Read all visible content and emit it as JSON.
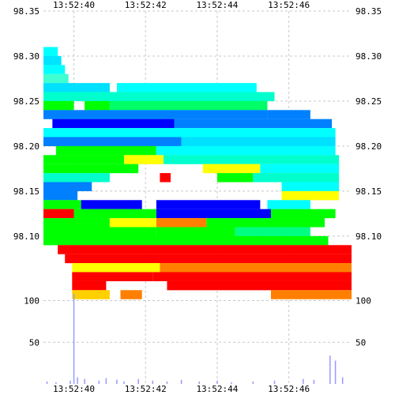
{
  "chart_data": {
    "type": "heatmap",
    "title": "",
    "xlabel": "",
    "ylabel": "",
    "grid": true,
    "x_tick_labels": [
      "13:52:40",
      "13:52:42",
      "13:52:44",
      "13:52:46"
    ],
    "x_ticks_sec": [
      0,
      2,
      4,
      6
    ],
    "xlim_sec": [
      -0.85,
      7.75
    ],
    "price_ticks": [
      98.35,
      98.3,
      98.25,
      98.2,
      98.15,
      98.1
    ],
    "price_tick_labels": [
      "98.35",
      "98.30",
      "98.25",
      "98.20",
      "98.15",
      "98.10"
    ],
    "price_ylim": [
      98.035,
      98.35
    ],
    "volume_ticks": [
      100,
      50
    ],
    "volume_tick_labels": [
      "100",
      "50"
    ],
    "volume_ylim": [
      0,
      110
    ],
    "color_scale": [
      "#00ff00",
      "#00ffff",
      "#0080ff",
      "#0000ff",
      "#ff0000",
      "#ffff00"
    ],
    "bands": [
      {
        "price": 98.305,
        "x0": -0.85,
        "x1": -0.45,
        "color": "#00ffff"
      },
      {
        "price": 98.295,
        "x0": -0.85,
        "x1": -0.35,
        "color": "#00e5ff"
      },
      {
        "price": 98.285,
        "x0": -0.85,
        "x1": -0.25,
        "color": "#00ffff"
      },
      {
        "price": 98.275,
        "x0": -0.85,
        "x1": -0.15,
        "color": "#40ffd0"
      },
      {
        "price": 98.265,
        "x0": -0.85,
        "x1": 1.0,
        "color": "#00e0ff"
      },
      {
        "price": 98.265,
        "x0": 1.2,
        "x1": 5.1,
        "color": "#00ffff"
      },
      {
        "price": 98.255,
        "x0": -0.85,
        "x1": 5.6,
        "color": "#00ffcc"
      },
      {
        "price": 98.245,
        "x0": -0.85,
        "x1": 0.0,
        "color": "#00ff00"
      },
      {
        "price": 98.245,
        "x0": 0.3,
        "x1": 1.0,
        "color": "#00ff00"
      },
      {
        "price": 98.245,
        "x0": 1.0,
        "x1": 5.4,
        "color": "#00ff66"
      },
      {
        "price": 98.235,
        "x0": -0.85,
        "x1": 5.4,
        "color": "#0080ff"
      },
      {
        "price": 98.235,
        "x0": 5.4,
        "x1": 6.6,
        "color": "#0080ff"
      },
      {
        "price": 98.225,
        "x0": -0.6,
        "x1": 2.8,
        "color": "#0000ff"
      },
      {
        "price": 98.225,
        "x0": 2.8,
        "x1": 7.2,
        "color": "#0080ff"
      },
      {
        "price": 98.215,
        "x0": -0.85,
        "x1": 7.3,
        "color": "#00ffff"
      },
      {
        "price": 98.205,
        "x0": -0.85,
        "x1": 3.0,
        "color": "#0080ff"
      },
      {
        "price": 98.205,
        "x0": 3.0,
        "x1": 7.3,
        "color": "#00e0ff"
      },
      {
        "price": 98.195,
        "x0": -0.5,
        "x1": 2.3,
        "color": "#00ff00"
      },
      {
        "price": 98.195,
        "x0": 2.3,
        "x1": 7.3,
        "color": "#00ffff"
      },
      {
        "price": 98.185,
        "x0": -0.85,
        "x1": 1.4,
        "color": "#00ff00"
      },
      {
        "price": 98.185,
        "x0": 1.4,
        "x1": 2.5,
        "color": "#ffff00"
      },
      {
        "price": 98.185,
        "x0": 2.5,
        "x1": 7.4,
        "color": "#00ffcc"
      },
      {
        "price": 98.175,
        "x0": -0.85,
        "x1": 1.8,
        "color": "#00ff00"
      },
      {
        "price": 98.175,
        "x0": 3.6,
        "x1": 5.2,
        "color": "#ffff00"
      },
      {
        "price": 98.175,
        "x0": 5.2,
        "x1": 7.4,
        "color": "#00ffff"
      },
      {
        "price": 98.165,
        "x0": -0.85,
        "x1": 1.0,
        "color": "#00ffcc"
      },
      {
        "price": 98.165,
        "x0": 2.4,
        "x1": 2.7,
        "color": "#ff0000"
      },
      {
        "price": 98.165,
        "x0": 4.0,
        "x1": 5.0,
        "color": "#00ff00"
      },
      {
        "price": 98.165,
        "x0": 5.0,
        "x1": 7.4,
        "color": "#00ffcc"
      },
      {
        "price": 98.155,
        "x0": -0.85,
        "x1": 0.5,
        "color": "#0080ff"
      },
      {
        "price": 98.155,
        "x0": 5.8,
        "x1": 7.4,
        "color": "#00ffff"
      },
      {
        "price": 98.145,
        "x0": -0.85,
        "x1": 0.1,
        "color": "#0080ff"
      },
      {
        "price": 98.145,
        "x0": 5.8,
        "x1": 7.4,
        "color": "#ffff00"
      },
      {
        "price": 98.135,
        "x0": -0.85,
        "x1": 0.2,
        "color": "#00ff00"
      },
      {
        "price": 98.135,
        "x0": 0.2,
        "x1": 1.9,
        "color": "#0000ff"
      },
      {
        "price": 98.135,
        "x0": 2.3,
        "x1": 5.2,
        "color": "#0000ff"
      },
      {
        "price": 98.135,
        "x0": 5.4,
        "x1": 6.6,
        "color": "#00ffff"
      },
      {
        "price": 98.125,
        "x0": -0.85,
        "x1": 0.0,
        "color": "#ff0000"
      },
      {
        "price": 98.125,
        "x0": 0.0,
        "x1": 2.3,
        "color": "#00ff00"
      },
      {
        "price": 98.125,
        "x0": 2.3,
        "x1": 5.5,
        "color": "#0000ff"
      },
      {
        "price": 98.125,
        "x0": 5.5,
        "x1": 7.3,
        "color": "#00ff00"
      },
      {
        "price": 98.115,
        "x0": -0.85,
        "x1": 1.0,
        "color": "#00ff00"
      },
      {
        "price": 98.115,
        "x0": 1.0,
        "x1": 2.3,
        "color": "#ffff00"
      },
      {
        "price": 98.115,
        "x0": 2.3,
        "x1": 3.7,
        "color": "#ff8000"
      },
      {
        "price": 98.115,
        "x0": 3.7,
        "x1": 7.0,
        "color": "#00ff00"
      },
      {
        "price": 98.105,
        "x0": -0.85,
        "x1": 2.3,
        "color": "#00ff00"
      },
      {
        "price": 98.105,
        "x0": 2.3,
        "x1": 4.5,
        "color": "#00ff00"
      },
      {
        "price": 98.105,
        "x0": 4.5,
        "x1": 6.6,
        "color": "#00ff80"
      },
      {
        "price": 98.095,
        "x0": -0.85,
        "x1": 7.1,
        "color": "#00ff00"
      },
      {
        "price": 98.085,
        "x0": -0.45,
        "x1": 7.75,
        "color": "#ff0000"
      },
      {
        "price": 98.075,
        "x0": -0.25,
        "x1": 7.75,
        "color": "#ff0000"
      },
      {
        "price": 98.065,
        "x0": -0.05,
        "x1": 2.4,
        "color": "#ffff00"
      },
      {
        "price": 98.065,
        "x0": 2.4,
        "x1": 7.75,
        "color": "#ff8000"
      },
      {
        "price": 98.055,
        "x0": -0.05,
        "x1": 2.2,
        "color": "#ff0000"
      },
      {
        "price": 98.055,
        "x0": 2.2,
        "x1": 7.75,
        "color": "#ff0000"
      },
      {
        "price": 98.045,
        "x0": -0.05,
        "x1": 0.9,
        "color": "#ff0000"
      },
      {
        "price": 98.045,
        "x0": 2.6,
        "x1": 7.75,
        "color": "#ff0000"
      },
      {
        "price": 98.035,
        "x0": -0.05,
        "x1": 1.0,
        "color": "#ffd000"
      },
      {
        "price": 98.035,
        "x0": 1.3,
        "x1": 1.9,
        "color": "#ff8000"
      },
      {
        "price": 98.035,
        "x0": 5.5,
        "x1": 7.75,
        "color": "#ff8000"
      }
    ],
    "volume": [
      {
        "t": -0.75,
        "v": 3
      },
      {
        "t": -0.5,
        "v": 2
      },
      {
        "t": -0.1,
        "v": 4
      },
      {
        "t": 0.0,
        "v": 108
      },
      {
        "t": 0.1,
        "v": 8
      },
      {
        "t": 0.3,
        "v": 6
      },
      {
        "t": 0.7,
        "v": 4
      },
      {
        "t": 0.9,
        "v": 7
      },
      {
        "t": 1.2,
        "v": 5
      },
      {
        "t": 1.4,
        "v": 3
      },
      {
        "t": 1.8,
        "v": 6
      },
      {
        "t": 2.2,
        "v": 4
      },
      {
        "t": 2.6,
        "v": 3
      },
      {
        "t": 3.0,
        "v": 5
      },
      {
        "t": 3.5,
        "v": 3
      },
      {
        "t": 4.0,
        "v": 4
      },
      {
        "t": 4.4,
        "v": 2
      },
      {
        "t": 5.0,
        "v": 3
      },
      {
        "t": 5.6,
        "v": 4
      },
      {
        "t": 6.4,
        "v": 6
      },
      {
        "t": 6.7,
        "v": 5
      },
      {
        "t": 7.15,
        "v": 34
      },
      {
        "t": 7.3,
        "v": 28
      },
      {
        "t": 7.5,
        "v": 8
      }
    ]
  }
}
